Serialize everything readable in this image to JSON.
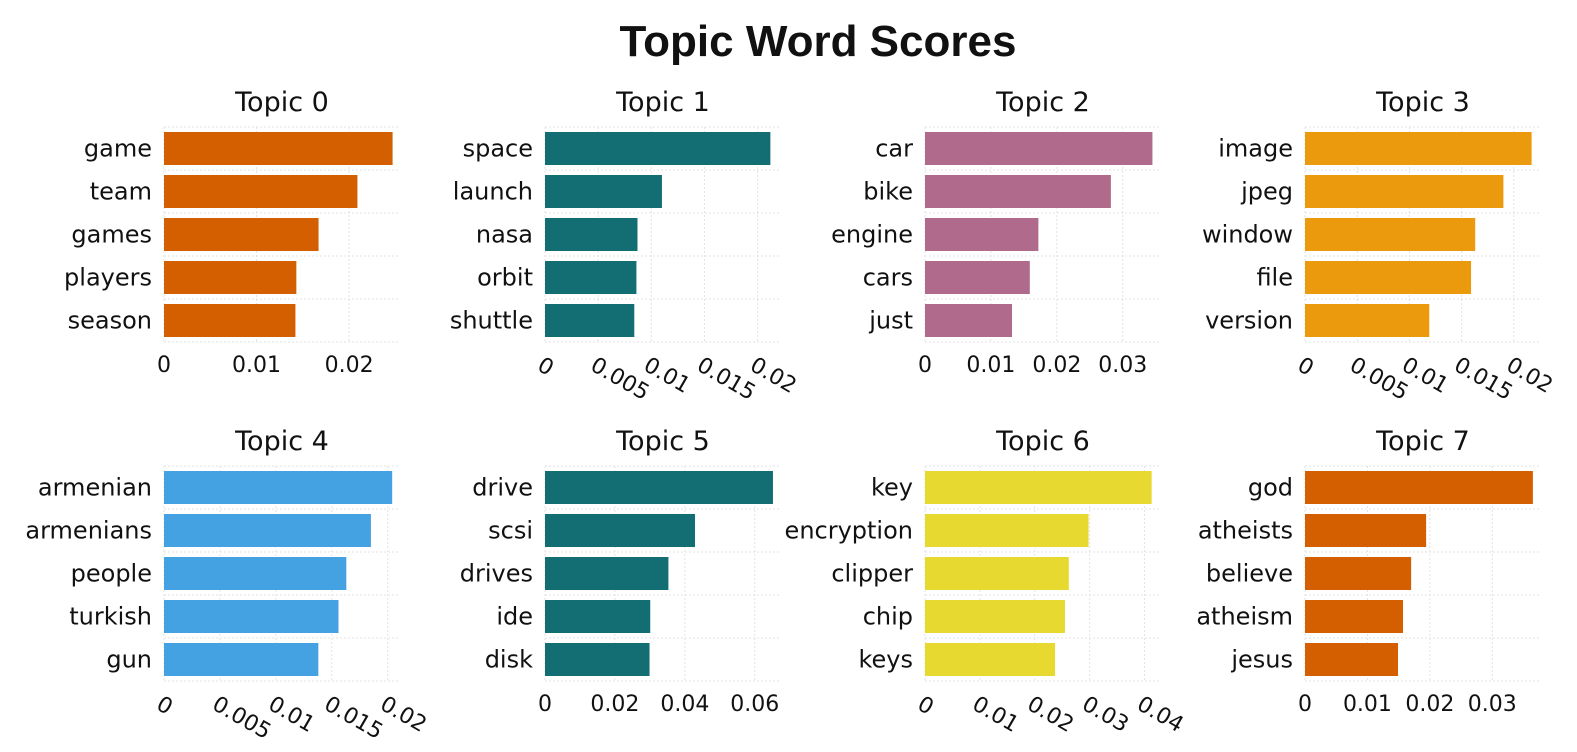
{
  "title": "Topic Word Scores",
  "chart_data": [
    {
      "type": "bar",
      "orientation": "horizontal",
      "title": "Topic 0",
      "color": "#d35f00",
      "categories": [
        "game",
        "team",
        "games",
        "players",
        "season"
      ],
      "values": [
        0.0247,
        0.0209,
        0.0167,
        0.0143,
        0.0142
      ],
      "xlim": [
        0,
        0.0255
      ],
      "ticks": [
        0,
        0.01,
        0.02
      ],
      "tick_labels": [
        "0",
        "0.01",
        "0.02"
      ],
      "rotate_ticks": false,
      "grid": true
    },
    {
      "type": "bar",
      "orientation": "horizontal",
      "title": "Topic 1",
      "color": "#136e73",
      "categories": [
        "space",
        "launch",
        "nasa",
        "orbit",
        "shuttle"
      ],
      "values": [
        0.0212,
        0.011,
        0.0087,
        0.0086,
        0.0084
      ],
      "xlim": [
        0,
        0.0222
      ],
      "ticks": [
        0,
        0.005,
        0.01,
        0.015,
        0.02
      ],
      "tick_labels": [
        "0",
        "0.005",
        "0.01",
        "0.015",
        "0.02"
      ],
      "rotate_ticks": true,
      "grid": true
    },
    {
      "type": "bar",
      "orientation": "horizontal",
      "title": "Topic 2",
      "color": "#b06b8c",
      "categories": [
        "car",
        "bike",
        "engine",
        "cars",
        "just"
      ],
      "values": [
        0.0345,
        0.0282,
        0.0172,
        0.0159,
        0.0132
      ],
      "xlim": [
        0,
        0.0358
      ],
      "ticks": [
        0,
        0.01,
        0.02,
        0.03
      ],
      "tick_labels": [
        "0",
        "0.01",
        "0.02",
        "0.03"
      ],
      "rotate_ticks": false,
      "grid": true
    },
    {
      "type": "bar",
      "orientation": "horizontal",
      "title": "Topic 3",
      "color": "#ec9a0d",
      "categories": [
        "image",
        "jpeg",
        "window",
        "file",
        "version"
      ],
      "values": [
        0.0217,
        0.019,
        0.0163,
        0.0159,
        0.0119
      ],
      "xlim": [
        0,
        0.0226
      ],
      "ticks": [
        0,
        0.005,
        0.01,
        0.015,
        0.02
      ],
      "tick_labels": [
        "0",
        "0.005",
        "0.01",
        "0.015",
        "0.02"
      ],
      "rotate_ticks": true,
      "grid": true
    },
    {
      "type": "bar",
      "orientation": "horizontal",
      "title": "Topic 4",
      "color": "#44a2e2",
      "categories": [
        "armenian",
        "armenians",
        "people",
        "turkish",
        "gun"
      ],
      "values": [
        0.0204,
        0.0185,
        0.0163,
        0.0156,
        0.0138
      ],
      "xlim": [
        0,
        0.0211
      ],
      "ticks": [
        0,
        0.005,
        0.01,
        0.015,
        0.02
      ],
      "tick_labels": [
        "0",
        "0.005",
        "0.01",
        "0.015",
        "0.02"
      ],
      "rotate_ticks": true,
      "grid": true
    },
    {
      "type": "bar",
      "orientation": "horizontal",
      "title": "Topic 5",
      "color": "#136e73",
      "categories": [
        "drive",
        "scsi",
        "drives",
        "ide",
        "disk"
      ],
      "values": [
        0.0652,
        0.0429,
        0.0353,
        0.0301,
        0.0299
      ],
      "xlim": [
        0,
        0.0675
      ],
      "ticks": [
        0,
        0.02,
        0.04,
        0.06
      ],
      "tick_labels": [
        "0",
        "0.02",
        "0.04",
        "0.06"
      ],
      "rotate_ticks": false,
      "grid": true
    },
    {
      "type": "bar",
      "orientation": "horizontal",
      "title": "Topic 6",
      "color": "#e8d930",
      "categories": [
        "key",
        "encryption",
        "clipper",
        "chip",
        "keys"
      ],
      "values": [
        0.0413,
        0.0298,
        0.0262,
        0.0255,
        0.0237
      ],
      "xlim": [
        0,
        0.043
      ],
      "ticks": [
        0,
        0.01,
        0.02,
        0.03,
        0.04
      ],
      "tick_labels": [
        "0",
        "0.01",
        "0.02",
        "0.03",
        "0.04"
      ],
      "rotate_ticks": true,
      "grid": true
    },
    {
      "type": "bar",
      "orientation": "horizontal",
      "title": "Topic 7",
      "color": "#d35f00",
      "categories": [
        "god",
        "atheists",
        "believe",
        "atheism",
        "jesus"
      ],
      "values": [
        0.0365,
        0.0194,
        0.017,
        0.0157,
        0.0149
      ],
      "xlim": [
        0,
        0.0378
      ],
      "ticks": [
        0,
        0.01,
        0.02,
        0.03
      ],
      "tick_labels": [
        "0",
        "0.01",
        "0.02",
        "0.03"
      ],
      "rotate_ticks": false,
      "grid": true
    }
  ]
}
